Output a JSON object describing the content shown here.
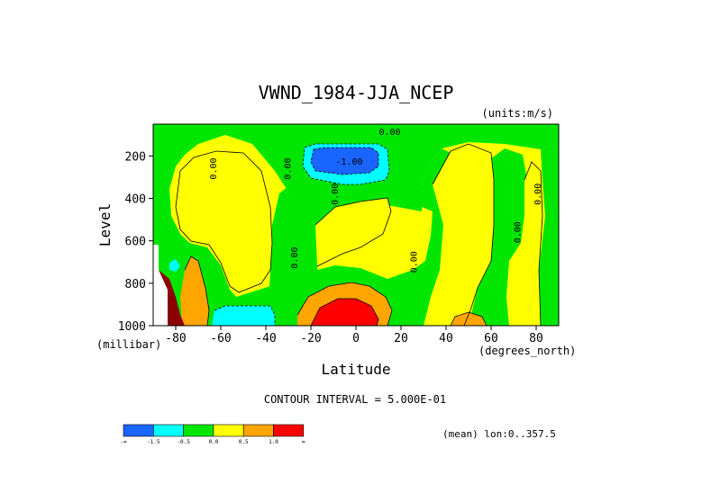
{
  "chart_data": {
    "type": "contour",
    "title": "VWND_1984-JJA_NCEP",
    "units_label": "(units:m/s)",
    "xlabel": "Latitude",
    "ylabel": "Level",
    "x_unit_label": "(degrees_north)",
    "y_unit_label": "(millibar)",
    "xlim": [
      -90,
      90
    ],
    "ylim": [
      1000,
      50
    ],
    "y_reversed": true,
    "x_ticks": [
      -80,
      -60,
      -40,
      -20,
      0,
      20,
      40,
      60,
      80
    ],
    "y_ticks": [
      200,
      400,
      600,
      800,
      1000
    ],
    "x_tick_labels": [
      "-80",
      "-60",
      "-40",
      "-20",
      "0",
      "20",
      "40",
      "60",
      "80"
    ],
    "y_tick_labels": [
      "200",
      "400",
      "600",
      "800",
      "1000"
    ],
    "contour_interval_text": "CONTOUR INTERVAL = 5.000E-01",
    "footer_text": "(mean) lon:0..357.5",
    "contour_labels": [
      {
        "text": "0.00",
        "lat": 15,
        "lev": 100
      },
      {
        "text": "-1.00",
        "lat": -3,
        "lev": 240
      },
      {
        "text": "0.00",
        "lat": -62,
        "lev": 260
      },
      {
        "text": "0.00",
        "lat": -29,
        "lev": 260
      },
      {
        "text": "0.00",
        "lat": -8,
        "lev": 380
      },
      {
        "text": "0.00",
        "lat": -26,
        "lev": 680
      },
      {
        "text": "0.00",
        "lat": 27,
        "lev": 700
      },
      {
        "text": "0.00",
        "lat": 73,
        "lev": 560
      },
      {
        "text": "0.00",
        "lat": 82,
        "lev": 380
      }
    ],
    "legend": {
      "colors": [
        "#1a64ff",
        "#00ffff",
        "#00e600",
        "#ffff00",
        "#ffa500",
        "#ff0000"
      ],
      "labels": [
        "-∞",
        "-1.5",
        "-0.5",
        "0.0",
        "0.5",
        "1.0",
        "∞"
      ]
    }
  }
}
